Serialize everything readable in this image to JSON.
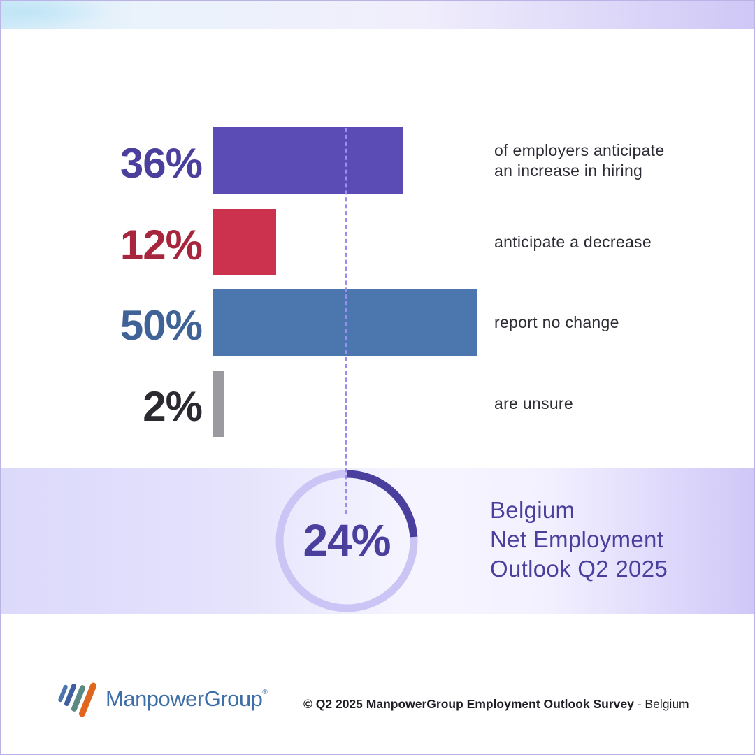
{
  "chart_data": {
    "type": "bar",
    "orientation": "horizontal",
    "rows": [
      {
        "percent_label": "36%",
        "value": 36,
        "description": [
          "of employers anticipate",
          "an increase in hiring"
        ],
        "color": "#5b4bb5",
        "label_color": "#4b3f9e"
      },
      {
        "percent_label": "12%",
        "value": 12,
        "description": [
          "anticipate a decrease"
        ],
        "color": "#cc324d",
        "label_color": "#a8263d"
      },
      {
        "percent_label": "50%",
        "value": 50,
        "description": [
          "report no change"
        ],
        "color": "#4b76ae",
        "label_color": "#3f6396"
      },
      {
        "percent_label": "2%",
        "value": 2,
        "description": [
          "are unsure"
        ],
        "color": "#9a9aa0",
        "label_color": "#2a2a30"
      }
    ],
    "xlim": [
      0,
      50
    ]
  },
  "neo": {
    "value": 24,
    "value_label": "24%",
    "title_lines": [
      "Belgium",
      "Net Employment",
      "Outlook Q2 2025"
    ],
    "ring_color": "#cbc5f6",
    "arc_color": "#4b3f9e"
  },
  "footer": {
    "brand": "ManpowerGroup",
    "registered": "®",
    "copyright_bold": "© Q2 2025 ManpowerGroup Employment Outlook Survey",
    "copyright_rest": " - Belgium"
  },
  "icons": {
    "logo": "manpowergroup-logo"
  }
}
